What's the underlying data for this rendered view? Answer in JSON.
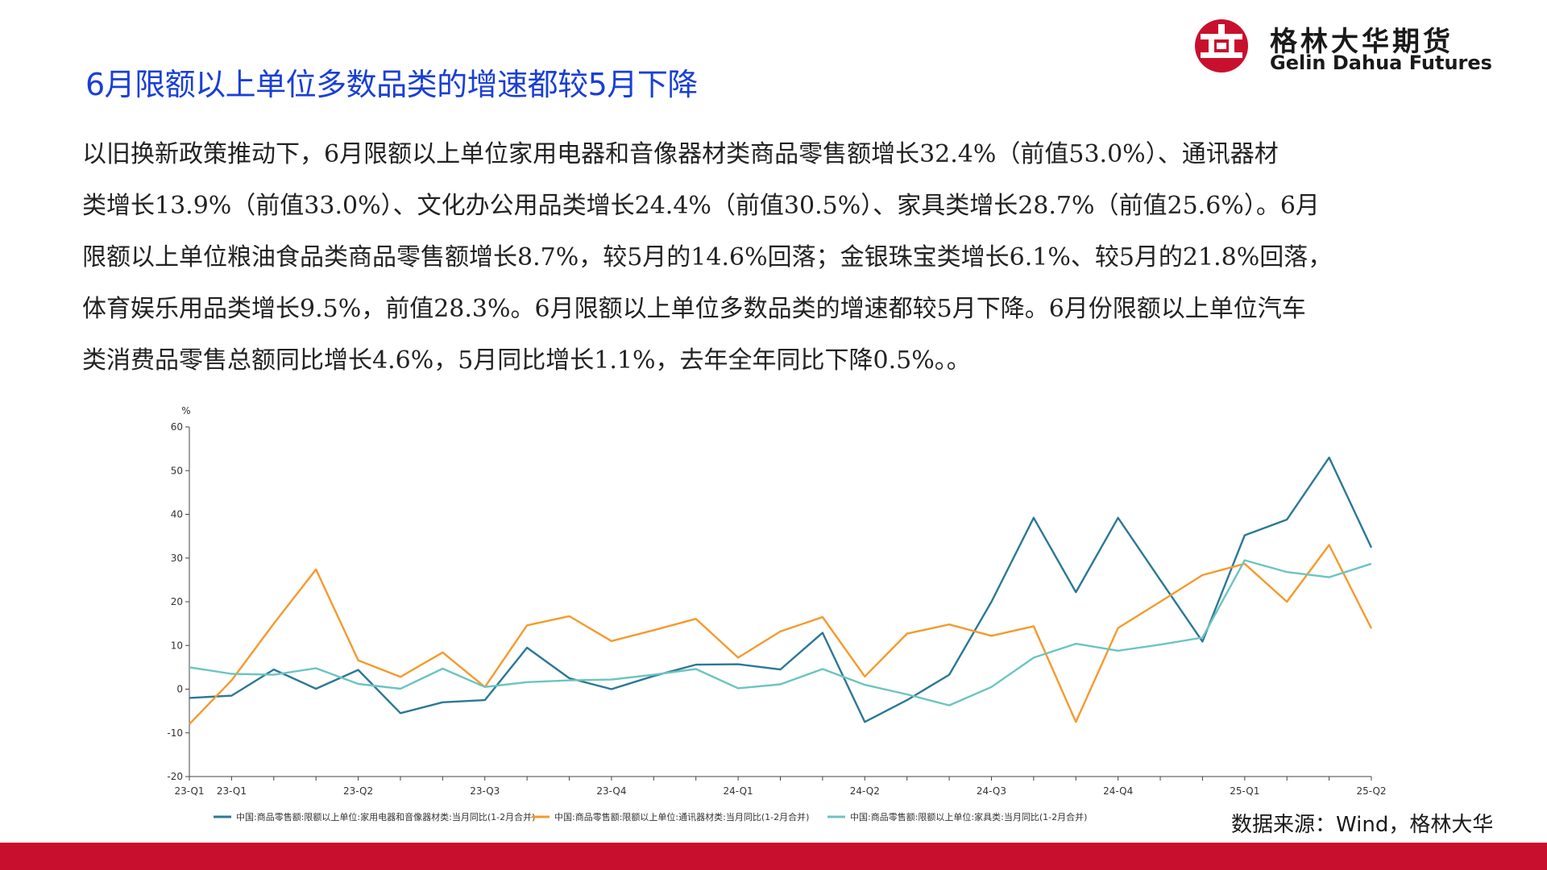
{
  "title": "6月限额以上单位多数品类的增速都较5月下降",
  "logo": {
    "cn": "格林大华期货",
    "en": "Gelin Dahua Futures",
    "icon": "gelin-dahua-logo-icon",
    "color": "#c8102e"
  },
  "paragraph_lines": [
    "以旧换新政策推动下，6月限额以上单位家用电器和音像器材类商品零售额增长32.4%（前值53.0%）、通讯器材",
    "类增长13.9%（前值33.0%）、文化办公用品类增长24.4%（前值30.5%）、家具类增长28.7%（前值25.6%）。6月",
    "限额以上单位粮油食品类商品零售额增长8.7%，较5月的14.6%回落；金银珠宝类增长6.1%、较5月的21.8%回落，",
    "体育娱乐用品类增长9.5%，前值28.3%。6月限额以上单位多数品类的增速都较5月下降。6月份限额以上单位汽车",
    "类消费品零售总额同比增长4.6%，5月同比增长1.1%，去年全年同比下降0.5%。。"
  ],
  "source": "数据来源：Wind，格林大华",
  "footer_color": "#c8102e",
  "chart_data": {
    "type": "line",
    "yunit": "%",
    "ylim": [
      -20,
      60
    ],
    "yticks": [
      -20,
      -10,
      0,
      10,
      20,
      30,
      40,
      50,
      60
    ],
    "x_ticks": [
      {
        "index": 0,
        "label": "23-Q1"
      },
      {
        "index": 1,
        "label": "23-Q1"
      },
      {
        "index": 4,
        "label": "23-Q2"
      },
      {
        "index": 7,
        "label": "23-Q3"
      },
      {
        "index": 10,
        "label": "23-Q4"
      },
      {
        "index": 13,
        "label": "24-Q1"
      },
      {
        "index": 16,
        "label": "24-Q2"
      },
      {
        "index": 19,
        "label": "24-Q3"
      },
      {
        "index": 22,
        "label": "24-Q4"
      },
      {
        "index": 25,
        "label": "25-Q1"
      },
      {
        "index": 28,
        "label": "25-Q2"
      }
    ],
    "series": [
      {
        "name": "中国:商品零售额:限额以上单位:家用电器和音像器材类:当月同比(1-2月合并)",
        "color": "#2b7896",
        "values": [
          -2.0,
          -1.5,
          4.5,
          0.1,
          4.4,
          -5.5,
          -3.0,
          -2.5,
          9.5,
          2.5,
          0.0,
          3.0,
          5.6,
          5.7,
          4.5,
          12.9,
          -7.5,
          -2.5,
          3.3,
          20.0,
          39.2,
          22.2,
          39.2,
          25.0,
          10.9,
          35.2,
          38.8,
          53.0,
          32.4
        ]
      },
      {
        "name": "中国:商品零售额:限额以上单位:通讯器材类:当月同比(1-2月合并)",
        "color": "#f59a2c",
        "values": [
          -8.0,
          2.0,
          15.0,
          27.4,
          6.6,
          2.8,
          8.4,
          0.5,
          14.6,
          16.7,
          11.0,
          13.5,
          16.1,
          7.2,
          13.2,
          16.5,
          2.9,
          12.7,
          14.8,
          12.2,
          14.4,
          -7.5,
          14.0,
          20.0,
          26.1,
          28.7,
          20.0,
          33.0,
          13.9
        ]
      },
      {
        "name": "中国:商品零售额:限额以上单位:家具类:当月同比(1-2月合并)",
        "color": "#6cc4c0",
        "values": [
          5.0,
          3.5,
          3.3,
          4.8,
          1.2,
          0.1,
          4.7,
          0.5,
          1.6,
          2.0,
          2.2,
          3.3,
          4.6,
          0.2,
          1.1,
          4.6,
          1.0,
          -1.2,
          -3.7,
          0.5,
          7.2,
          10.4,
          8.8,
          10.2,
          11.8,
          29.5,
          26.8,
          25.6,
          28.7
        ]
      }
    ]
  }
}
